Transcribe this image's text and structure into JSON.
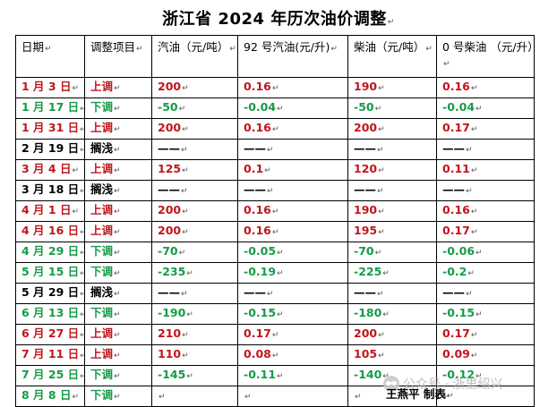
{
  "document": {
    "title": "浙江省 2024 年历次油价调整",
    "credit": "王燕平 制表",
    "watermark": "公众号 · 浙里绍兴"
  },
  "table": {
    "headers": [
      "日期",
      "调整项目",
      "汽油（元/吨）",
      "92 号汽油(元/升)",
      "柴油（元/吨）",
      "0 号柴油 （元/升）"
    ],
    "rows": [
      {
        "date": "1 月 3 日",
        "type": "上调",
        "kind": "up",
        "gasoline_ton": "200",
        "gasoline_92_liter": "0.16",
        "diesel_ton": "190",
        "diesel_0_liter": "0.16"
      },
      {
        "date": "1 月 17 日",
        "type": "下调",
        "kind": "down",
        "gasoline_ton": "-50",
        "gasoline_92_liter": "-0.04",
        "diesel_ton": "-50",
        "diesel_0_liter": "-0.04"
      },
      {
        "date": "1 月 31 日",
        "type": "上调",
        "kind": "up",
        "gasoline_ton": "200",
        "gasoline_92_liter": "0.16",
        "diesel_ton": "200",
        "diesel_0_liter": "0.17"
      },
      {
        "date": "2 月 19 日",
        "type": "搁浅",
        "kind": "hold",
        "gasoline_ton": "——",
        "gasoline_92_liter": "——",
        "diesel_ton": "——",
        "diesel_0_liter": "——"
      },
      {
        "date": "3 月 4 日",
        "type": "上调",
        "kind": "up",
        "gasoline_ton": "125",
        "gasoline_92_liter": "0.1",
        "diesel_ton": "120",
        "diesel_0_liter": "0.11"
      },
      {
        "date": "3 月 18 日",
        "type": "搁浅",
        "kind": "hold",
        "gasoline_ton": "——",
        "gasoline_92_liter": "——",
        "diesel_ton": "——",
        "diesel_0_liter": "——"
      },
      {
        "date": "4 月 1 日",
        "type": "上调",
        "kind": "up",
        "gasoline_ton": "200",
        "gasoline_92_liter": "0.16",
        "diesel_ton": "190",
        "diesel_0_liter": "0.16"
      },
      {
        "date": "4 月 16 日",
        "type": "上调",
        "kind": "up",
        "gasoline_ton": "200",
        "gasoline_92_liter": "0.16",
        "diesel_ton": "195",
        "diesel_0_liter": "0.17"
      },
      {
        "date": "4 月 29 日",
        "type": "下调",
        "kind": "down",
        "gasoline_ton": "-70",
        "gasoline_92_liter": "-0.05",
        "diesel_ton": "-70",
        "diesel_0_liter": "-0.06"
      },
      {
        "date": "5 月 15 日",
        "type": "下调",
        "kind": "down",
        "gasoline_ton": "-235",
        "gasoline_92_liter": "-0.19",
        "diesel_ton": "-225",
        "diesel_0_liter": "-0.2"
      },
      {
        "date": "5 月 29 日",
        "type": "搁浅",
        "kind": "hold",
        "gasoline_ton": "——",
        "gasoline_92_liter": "——",
        "diesel_ton": "——",
        "diesel_0_liter": "——"
      },
      {
        "date": "6 月 13 日",
        "type": "下调",
        "kind": "down",
        "gasoline_ton": "-190",
        "gasoline_92_liter": "-0.15",
        "diesel_ton": "-180",
        "diesel_0_liter": "-0.15"
      },
      {
        "date": "6 月 27 日",
        "type": "上调",
        "kind": "up",
        "gasoline_ton": "210",
        "gasoline_92_liter": "0.17",
        "diesel_ton": "200",
        "diesel_0_liter": "0.17"
      },
      {
        "date": "7 月 11 日",
        "type": "上调",
        "kind": "up",
        "gasoline_ton": "110",
        "gasoline_92_liter": "0.08",
        "diesel_ton": "105",
        "diesel_0_liter": "0.09"
      },
      {
        "date": "7 月 25 日",
        "type": "下调",
        "kind": "down",
        "gasoline_ton": "-145",
        "gasoline_92_liter": "-0.11",
        "diesel_ton": "-140",
        "diesel_0_liter": "-0.12"
      },
      {
        "date": "8 月 8 日",
        "type": "下调",
        "kind": "down",
        "gasoline_ton": "",
        "gasoline_92_liter": "",
        "diesel_ton": "",
        "diesel_0_liter": ""
      }
    ]
  },
  "colors": {
    "up": "#c0161c",
    "down": "#149c46",
    "hold": "#000000"
  },
  "icons": {
    "paragraph_mark": "return-mark-icon",
    "watermark_logo": "wechat-logo-icon"
  }
}
